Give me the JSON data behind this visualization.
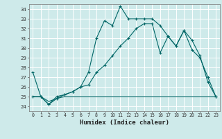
{
  "xlabel": "Humidex (Indice chaleur)",
  "xlim": [
    -0.5,
    23.5
  ],
  "ylim": [
    23.5,
    34.5
  ],
  "xticks": [
    0,
    1,
    2,
    3,
    4,
    5,
    6,
    7,
    8,
    9,
    10,
    11,
    12,
    13,
    14,
    15,
    16,
    17,
    18,
    19,
    20,
    21,
    22,
    23
  ],
  "yticks": [
    24,
    25,
    26,
    27,
    28,
    29,
    30,
    31,
    32,
    33,
    34
  ],
  "bg_color": "#ceeaea",
  "line_color": "#006666",
  "grid_color": "#ffffff",
  "series1_x": [
    0,
    1,
    2,
    3,
    4,
    5,
    6,
    7,
    8,
    9,
    10,
    11,
    12,
    13,
    14,
    15,
    16,
    17,
    18,
    19,
    20,
    21,
    22,
    23
  ],
  "series1_y": [
    27.5,
    25.0,
    24.2,
    25.0,
    25.2,
    25.5,
    26.0,
    27.5,
    31.0,
    32.8,
    32.3,
    34.3,
    33.0,
    33.0,
    33.0,
    33.0,
    32.3,
    31.2,
    30.2,
    31.8,
    30.8,
    29.2,
    26.5,
    25.0
  ],
  "series2_x": [
    0,
    1,
    2,
    3,
    4,
    5,
    6,
    7,
    8,
    9,
    10,
    11,
    12,
    13,
    14,
    15,
    16,
    17,
    18,
    19,
    20,
    21,
    22,
    23
  ],
  "series2_y": [
    25.0,
    25.0,
    24.2,
    24.8,
    25.2,
    25.5,
    26.0,
    26.2,
    27.5,
    28.2,
    29.2,
    30.2,
    31.0,
    32.0,
    32.5,
    32.5,
    29.5,
    31.2,
    30.2,
    31.8,
    29.8,
    29.0,
    27.0,
    25.0
  ],
  "series3_x": [
    0,
    1,
    2,
    3,
    4,
    5,
    9,
    10,
    11,
    12,
    13,
    14,
    15,
    16,
    17,
    18,
    19,
    20,
    21,
    22,
    23
  ],
  "series3_y": [
    25.0,
    25.0,
    24.5,
    24.8,
    25.0,
    25.0,
    25.0,
    25.0,
    25.0,
    25.0,
    25.0,
    25.0,
    25.0,
    25.0,
    25.0,
    25.0,
    25.0,
    25.0,
    25.0,
    25.0,
    25.0
  ]
}
